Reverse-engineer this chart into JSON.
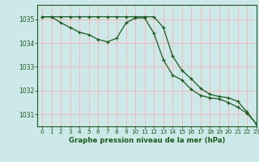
{
  "title": "Graphe pression niveau de la mer (hPa)",
  "bg_color": "#cce8e8",
  "grid_color": "#ffb0b0",
  "line_color": "#1a5c1a",
  "xlim": [
    -0.5,
    23
  ],
  "ylim": [
    1030.5,
    1035.6
  ],
  "yticks": [
    1031,
    1032,
    1033,
    1034,
    1035
  ],
  "xticks": [
    0,
    1,
    2,
    3,
    4,
    5,
    6,
    7,
    8,
    9,
    10,
    11,
    12,
    13,
    14,
    15,
    16,
    17,
    18,
    19,
    20,
    21,
    22,
    23
  ],
  "series1_x": [
    0,
    1,
    2,
    3,
    4,
    5,
    6,
    7,
    8,
    9,
    10,
    11,
    12,
    13,
    14,
    15,
    16,
    17,
    18,
    19,
    20,
    21,
    22,
    23
  ],
  "series1_y": [
    1035.1,
    1035.1,
    1034.85,
    1034.65,
    1034.45,
    1034.35,
    1034.15,
    1034.05,
    1034.2,
    1034.85,
    1035.05,
    1035.05,
    1034.4,
    1033.3,
    1032.65,
    1032.45,
    1032.05,
    1031.8,
    1031.7,
    1031.65,
    1031.5,
    1031.3,
    1031.05,
    1030.6
  ],
  "series2_x": [
    0,
    1,
    2,
    3,
    4,
    5,
    6,
    7,
    8,
    9,
    10,
    11,
    12,
    13,
    14,
    15,
    16,
    17,
    18,
    19,
    20,
    21,
    22,
    23
  ],
  "series2_y": [
    1035.1,
    1035.1,
    1035.1,
    1035.1,
    1035.1,
    1035.1,
    1035.1,
    1035.1,
    1035.1,
    1035.1,
    1035.1,
    1035.1,
    1035.1,
    1034.65,
    1033.45,
    1032.85,
    1032.5,
    1032.1,
    1031.85,
    1031.75,
    1031.7,
    1031.55,
    1031.1,
    1030.6
  ]
}
